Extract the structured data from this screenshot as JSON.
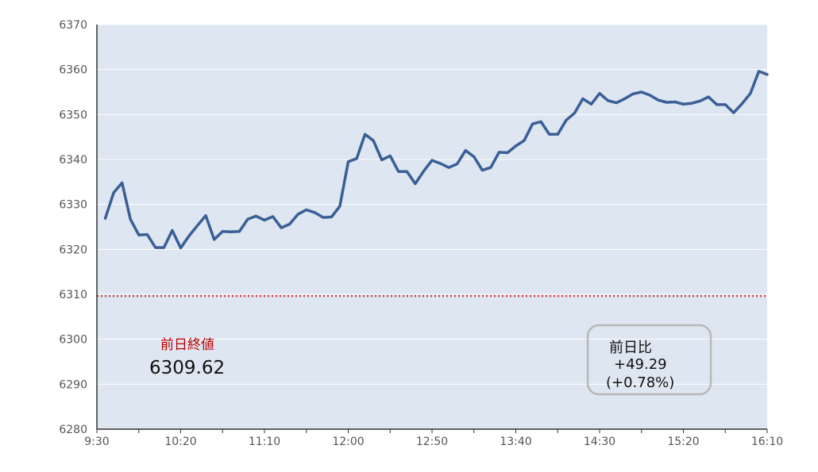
{
  "chart_data": {
    "type": "line",
    "title": "",
    "xlabel": "",
    "ylabel": "",
    "ylim": [
      6280,
      6370
    ],
    "yticks": [
      6280,
      6290,
      6300,
      6310,
      6320,
      6330,
      6340,
      6350,
      6360,
      6370
    ],
    "xticks": [
      "9:30",
      "10:20",
      "11:10",
      "12:00",
      "12:50",
      "13:40",
      "14:30",
      "15:20",
      "16:10"
    ],
    "xrange": [
      "9:30",
      "16:10"
    ],
    "grid": "horizontal",
    "colors": {
      "line": "#3a5f95",
      "plot_background": "#dde6f1",
      "reference_line": "#d04040",
      "axis": "#333333",
      "grid": "#ffffff"
    },
    "series": [
      {
        "x": [
          "9:35",
          "9:40",
          "9:45",
          "9:50",
          "9:55",
          "10:00",
          "10:05",
          "10:10",
          "10:15",
          "10:20",
          "10:25",
          "10:30",
          "10:35",
          "10:40",
          "10:45",
          "10:50",
          "10:55",
          "11:00",
          "11:05",
          "11:10",
          "11:15",
          "11:20",
          "11:25",
          "11:30",
          "11:35",
          "11:40",
          "11:45",
          "11:50",
          "11:55",
          "12:00",
          "12:05",
          "12:10",
          "12:15",
          "12:20",
          "12:25",
          "12:30",
          "12:35",
          "12:40",
          "12:45",
          "12:50",
          "12:55",
          "13:00",
          "13:05",
          "13:10",
          "13:15",
          "13:20",
          "13:25",
          "13:30",
          "13:35",
          "13:40",
          "13:45",
          "13:50",
          "13:55",
          "14:00",
          "14:05",
          "14:10",
          "14:15",
          "14:20",
          "14:25",
          "14:30",
          "14:35",
          "14:40",
          "14:45",
          "14:50",
          "14:55",
          "15:00",
          "15:05",
          "15:10",
          "15:15",
          "15:20",
          "15:25",
          "15:30",
          "15:35",
          "15:40",
          "15:45",
          "15:50",
          "15:55",
          "16:00",
          "16:05",
          "16:10"
        ],
        "values": [
          6326.9,
          6332.6,
          6334.8,
          6326.7,
          6323.2,
          6323.3,
          6320.4,
          6320.4,
          6324.2,
          6320.3,
          6323.0,
          6325.3,
          6327.5,
          6322.2,
          6324.0,
          6323.9,
          6324.0,
          6326.7,
          6327.4,
          6326.5,
          6327.3,
          6324.8,
          6325.6,
          6327.8,
          6328.8,
          6328.2,
          6327.1,
          6327.2,
          6329.6,
          6339.5,
          6340.2,
          6345.6,
          6344.2,
          6339.9,
          6340.8,
          6337.3,
          6337.3,
          6334.6,
          6337.4,
          6339.8,
          6339.1,
          6338.2,
          6339.0,
          6342.0,
          6340.6,
          6337.6,
          6338.2,
          6341.6,
          6341.5,
          6343.0,
          6344.2,
          6347.9,
          6348.4,
          6345.6,
          6345.6,
          6348.7,
          6350.3,
          6353.5,
          6352.3,
          6354.7,
          6353.1,
          6352.6,
          6353.5,
          6354.6,
          6355.0,
          6354.3,
          6353.2,
          6352.7,
          6352.8,
          6352.3,
          6352.5,
          6353.0,
          6353.9,
          6352.2,
          6352.2,
          6350.4,
          6352.4,
          6354.7,
          6359.6,
          6358.9
        ]
      }
    ],
    "reference": {
      "label": "前日終値",
      "value": 6309.62,
      "value_text": "6309.62"
    },
    "change": {
      "label": "前日比",
      "value_text": "+49.29",
      "pct_text": "(+0.78%)"
    }
  }
}
